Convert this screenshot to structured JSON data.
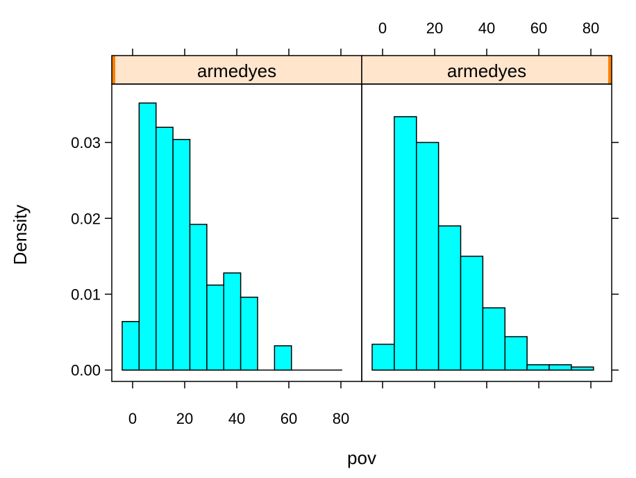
{
  "chart_data": {
    "type": "bar",
    "subtype": "histogram-trellis",
    "xlabel": "pov",
    "ylabel": "Density",
    "xlim": [
      -8,
      88
    ],
    "ylim": [
      -0.0015,
      0.0377
    ],
    "x_ticks": [
      0,
      20,
      40,
      60,
      80
    ],
    "x_tick_labels": [
      "0",
      "20",
      "40",
      "60",
      "80"
    ],
    "y_ticks": [
      0,
      0.01,
      0.02,
      0.03
    ],
    "y_tick_labels": [
      "0.00",
      "0.01",
      "0.02",
      "0.03"
    ],
    "colors": {
      "bar_fill": "#00FFFF",
      "strip_fill": "#FFE5CC",
      "strip_indicator": "#FF7F00"
    },
    "panels": [
      {
        "strip_label": "armedyes",
        "bin_edges": [
          -4,
          2.5,
          9,
          15.5,
          22,
          28.5,
          35,
          41.5,
          48,
          54.5,
          61,
          67.5,
          74,
          80.5
        ],
        "values": [
          0.0064,
          0.0352,
          0.032,
          0.0304,
          0.0192,
          0.0112,
          0.0128,
          0.0096,
          0.0,
          0.0032,
          0.0,
          0.0,
          0.0
        ]
      },
      {
        "strip_label": "armedyes",
        "bin_edges": [
          -4,
          4.5,
          13,
          21.5,
          30,
          38.5,
          47,
          55.5,
          64,
          72.5,
          81
        ],
        "values": [
          0.0034,
          0.0334,
          0.03,
          0.019,
          0.015,
          0.0082,
          0.0044,
          0.0007,
          0.0007,
          0.0004
        ]
      }
    ]
  }
}
